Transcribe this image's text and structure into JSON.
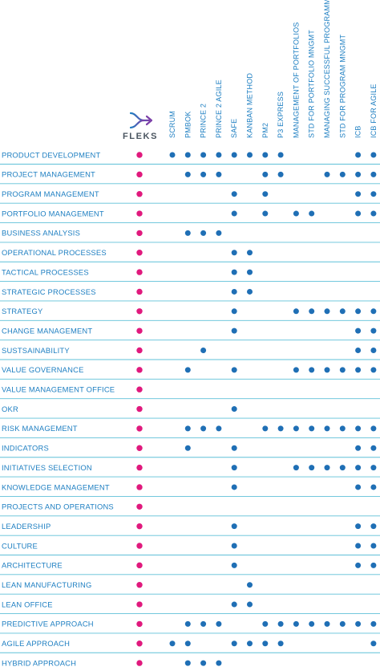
{
  "brand": {
    "name": "FLEKS",
    "logo_icon": "fleks-arrow-logo-icon",
    "colors": {
      "logo_start": "#1e7fc2",
      "logo_end": "#7b3fa8",
      "text": "#4a5560"
    }
  },
  "colors": {
    "fleks_dot": "#e0197d",
    "method_dot": "#1f6fb5",
    "label": "#1e7fc2",
    "row_line": "#5fc0d8"
  },
  "columns": [
    "SCRUM",
    "PMBOK",
    "PRINCE 2",
    "PRINCE 2 AGILE",
    "SAFE",
    "KANBAN METHOD",
    "PM2",
    "P3 EXPRESS",
    "MANAGEMENT OF PORTFOLIOS",
    "STD FOR PORTFOLIO MNGMT",
    "MANAGING SUCCESSFUL PROGRAMMES",
    "STD FOR PROGRAM MNGMT",
    "ICB",
    "ICB FOR AGILE"
  ],
  "rows": [
    {
      "label": "PRODUCT DEVELOPMENT",
      "fleks": true,
      "marks": [
        1,
        1,
        1,
        1,
        1,
        1,
        1,
        1,
        0,
        0,
        0,
        0,
        1,
        1
      ]
    },
    {
      "label": "PROJECT MANAGEMENT",
      "fleks": true,
      "marks": [
        0,
        1,
        1,
        1,
        0,
        0,
        1,
        1,
        0,
        0,
        1,
        1,
        1,
        1
      ]
    },
    {
      "label": "PROGRAM MANAGEMENT",
      "fleks": true,
      "marks": [
        0,
        0,
        0,
        0,
        1,
        0,
        1,
        0,
        0,
        0,
        0,
        0,
        1,
        1
      ]
    },
    {
      "label": "PORTFOLIO MANAGEMENT",
      "fleks": true,
      "marks": [
        0,
        0,
        0,
        0,
        1,
        0,
        1,
        0,
        1,
        1,
        0,
        0,
        1,
        1
      ]
    },
    {
      "label": "BUSINESS ANALYSIS",
      "fleks": true,
      "marks": [
        0,
        1,
        1,
        1,
        0,
        0,
        0,
        0,
        0,
        0,
        0,
        0,
        0,
        0
      ]
    },
    {
      "label": "OPERATIONAL PROCESSES",
      "fleks": true,
      "marks": [
        0,
        0,
        0,
        0,
        1,
        1,
        0,
        0,
        0,
        0,
        0,
        0,
        0,
        0
      ]
    },
    {
      "label": "TACTICAL PROCESSES",
      "fleks": true,
      "marks": [
        0,
        0,
        0,
        0,
        1,
        1,
        0,
        0,
        0,
        0,
        0,
        0,
        0,
        0
      ]
    },
    {
      "label": "STRATEGIC PROCESSES",
      "fleks": true,
      "marks": [
        0,
        0,
        0,
        0,
        1,
        1,
        0,
        0,
        0,
        0,
        0,
        0,
        0,
        0
      ]
    },
    {
      "label": "STRATEGY",
      "fleks": true,
      "marks": [
        0,
        0,
        0,
        0,
        1,
        0,
        0,
        0,
        1,
        1,
        1,
        1,
        1,
        1
      ]
    },
    {
      "label": "CHANGE MANAGEMENT",
      "fleks": true,
      "marks": [
        0,
        0,
        0,
        0,
        1,
        0,
        0,
        0,
        0,
        0,
        0,
        0,
        1,
        1
      ]
    },
    {
      "label": "SUSTSAINABILITY",
      "fleks": true,
      "marks": [
        0,
        0,
        1,
        0,
        0,
        0,
        0,
        0,
        0,
        0,
        0,
        0,
        1,
        1
      ]
    },
    {
      "label": "VALUE GOVERNANCE",
      "fleks": true,
      "marks": [
        0,
        1,
        0,
        0,
        1,
        0,
        0,
        0,
        1,
        1,
        1,
        1,
        1,
        1
      ]
    },
    {
      "label": "VALUE MANAGEMENT OFFICE",
      "fleks": true,
      "marks": [
        0,
        0,
        0,
        0,
        0,
        0,
        0,
        0,
        0,
        0,
        0,
        0,
        0,
        0
      ]
    },
    {
      "label": "OKR",
      "fleks": true,
      "marks": [
        0,
        0,
        0,
        0,
        1,
        0,
        0,
        0,
        0,
        0,
        0,
        0,
        0,
        0
      ]
    },
    {
      "label": "RISK MANAGEMENT",
      "fleks": true,
      "marks": [
        0,
        1,
        1,
        1,
        0,
        0,
        1,
        1,
        1,
        1,
        1,
        1,
        1,
        1
      ]
    },
    {
      "label": "INDICATORS",
      "fleks": true,
      "marks": [
        0,
        1,
        0,
        0,
        1,
        0,
        0,
        0,
        0,
        0,
        0,
        0,
        1,
        1
      ]
    },
    {
      "label": "INITIATIVES SELECTION",
      "fleks": true,
      "marks": [
        0,
        0,
        0,
        0,
        1,
        0,
        0,
        0,
        1,
        1,
        1,
        1,
        1,
        1
      ]
    },
    {
      "label": "KNOWLEDGE MANAGEMENT",
      "fleks": true,
      "marks": [
        0,
        0,
        0,
        0,
        1,
        0,
        0,
        0,
        0,
        0,
        0,
        0,
        1,
        1
      ]
    },
    {
      "label": "PROJECTS AND OPERATIONS",
      "fleks": true,
      "marks": [
        0,
        0,
        0,
        0,
        0,
        0,
        0,
        0,
        0,
        0,
        0,
        0,
        0,
        0
      ]
    },
    {
      "label": "LEADERSHIP",
      "fleks": true,
      "marks": [
        0,
        0,
        0,
        0,
        1,
        0,
        0,
        0,
        0,
        0,
        0,
        0,
        1,
        1
      ]
    },
    {
      "label": "CULTURE",
      "fleks": true,
      "marks": [
        0,
        0,
        0,
        0,
        1,
        0,
        0,
        0,
        0,
        0,
        0,
        0,
        1,
        1
      ]
    },
    {
      "label": "ARCHITECTURE",
      "fleks": true,
      "marks": [
        0,
        0,
        0,
        0,
        1,
        0,
        0,
        0,
        0,
        0,
        0,
        0,
        1,
        1
      ]
    },
    {
      "label": "LEAN MANUFACTURING",
      "fleks": true,
      "marks": [
        0,
        0,
        0,
        0,
        0,
        1,
        0,
        0,
        0,
        0,
        0,
        0,
        0,
        0
      ]
    },
    {
      "label": "LEAN OFFICE",
      "fleks": true,
      "marks": [
        0,
        0,
        0,
        0,
        1,
        1,
        0,
        0,
        0,
        0,
        0,
        0,
        0,
        0
      ]
    },
    {
      "label": "PREDICTIVE APPROACH",
      "fleks": true,
      "marks": [
        0,
        1,
        1,
        1,
        0,
        0,
        1,
        1,
        1,
        1,
        1,
        1,
        1,
        1
      ]
    },
    {
      "label": "AGILE APPROACH",
      "fleks": true,
      "marks": [
        1,
        1,
        0,
        0,
        1,
        1,
        1,
        1,
        0,
        0,
        0,
        0,
        0,
        1
      ]
    },
    {
      "label": "HYBRID APPROACH",
      "fleks": true,
      "marks": [
        0,
        1,
        1,
        1,
        0,
        0,
        0,
        0,
        0,
        0,
        0,
        0,
        0,
        0
      ]
    }
  ]
}
